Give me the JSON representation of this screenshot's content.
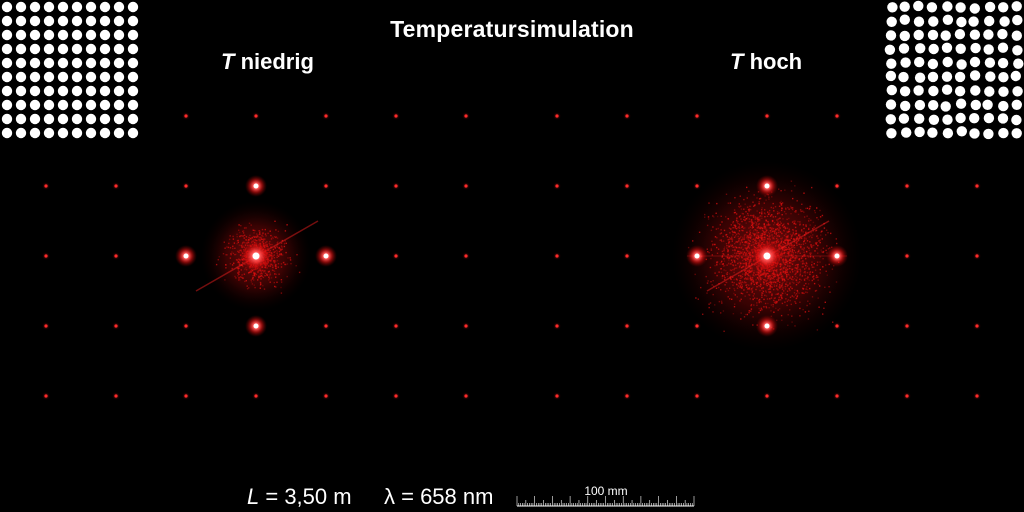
{
  "title": "Temperatursimulation",
  "left_panel": {
    "label_var": "T",
    "label_text": " niedrig"
  },
  "right_panel": {
    "label_var": "T",
    "label_text": " hoch"
  },
  "footer": {
    "length_var": "L",
    "length_value": " = 3,50 m",
    "lambda_symbol": "λ",
    "lambda_value": " = 658 nm",
    "scale_label": "100 mm"
  },
  "colors": {
    "background": "#000000",
    "laser": "#ff1a1a",
    "inset_bg": "#ffffff",
    "inset_dots": "#ffffff"
  }
}
